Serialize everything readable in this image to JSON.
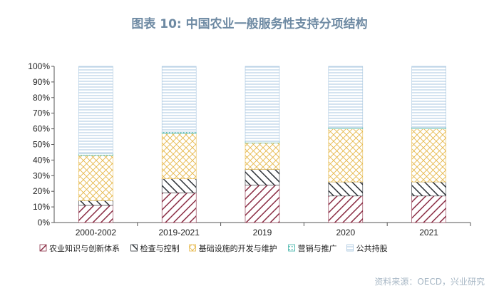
{
  "title": "图表 10: 中国农业一般服务性支持分项结构",
  "source": "资料来源：OECD，兴业研究",
  "chart_data": {
    "type": "bar",
    "stacked": true,
    "title": "图表 10: 中国农业一般服务性支持分项结构",
    "categories": [
      "2000-2002",
      "2019-2021",
      "2019",
      "2020",
      "2021"
    ],
    "ylim": [
      0,
      100
    ],
    "yticks": [
      0,
      10,
      20,
      30,
      40,
      50,
      60,
      70,
      80,
      90,
      100
    ],
    "ytick_suffix": "%",
    "series": [
      {
        "name": "农业知识与创新体系",
        "color": "#8b2e45",
        "pattern": "diag-down",
        "values": [
          11,
          19,
          24,
          17,
          17
        ]
      },
      {
        "name": "检查与控制",
        "color": "#2d3238",
        "pattern": "diag-up",
        "values": [
          3,
          9,
          10,
          9,
          9
        ]
      },
      {
        "name": "基础设施的开发与维护",
        "color": "#e6b84a",
        "pattern": "cross",
        "values": [
          29,
          29,
          17,
          34,
          34
        ]
      },
      {
        "name": "营销与推广",
        "color": "#3fb3a8",
        "pattern": "dots",
        "values": [
          1,
          1,
          1,
          1,
          1
        ]
      },
      {
        "name": "公共持股",
        "color": "#a9c7e0",
        "pattern": "hlines",
        "values": [
          56,
          42,
          48,
          39,
          39
        ]
      }
    ]
  }
}
